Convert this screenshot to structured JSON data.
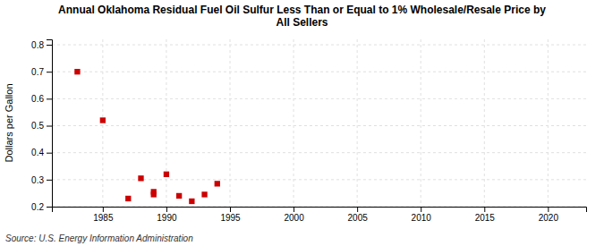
{
  "chart_data": {
    "type": "scatter",
    "title": "Annual Oklahoma Residual Fuel Oil Sulfur Less Than or Equal to 1% Wholesale/Resale Price by\nAll Sellers",
    "y_label": "Dollars per Gallon",
    "annotations": [
      "Source: U.S. Energy Information Administration"
    ],
    "x": [
      1983,
      1985,
      1987,
      1988,
      1989,
      1989,
      1990,
      1991,
      1992,
      1993,
      1994
    ],
    "values": [
      0.7,
      0.52,
      0.23,
      0.305,
      0.245,
      0.255,
      0.32,
      0.24,
      0.22,
      0.245,
      0.285
    ],
    "color": "#cc0000",
    "marker": "square",
    "xlim": [
      1981,
      2023
    ],
    "ylim": [
      0.2,
      0.82
    ],
    "xticks": [
      1985,
      1990,
      1995,
      2000,
      2005,
      2010,
      2015,
      2020
    ],
    "yticks": [
      0.2,
      0.3,
      0.4,
      0.5,
      0.6,
      0.7,
      0.8
    ],
    "grid": true
  }
}
